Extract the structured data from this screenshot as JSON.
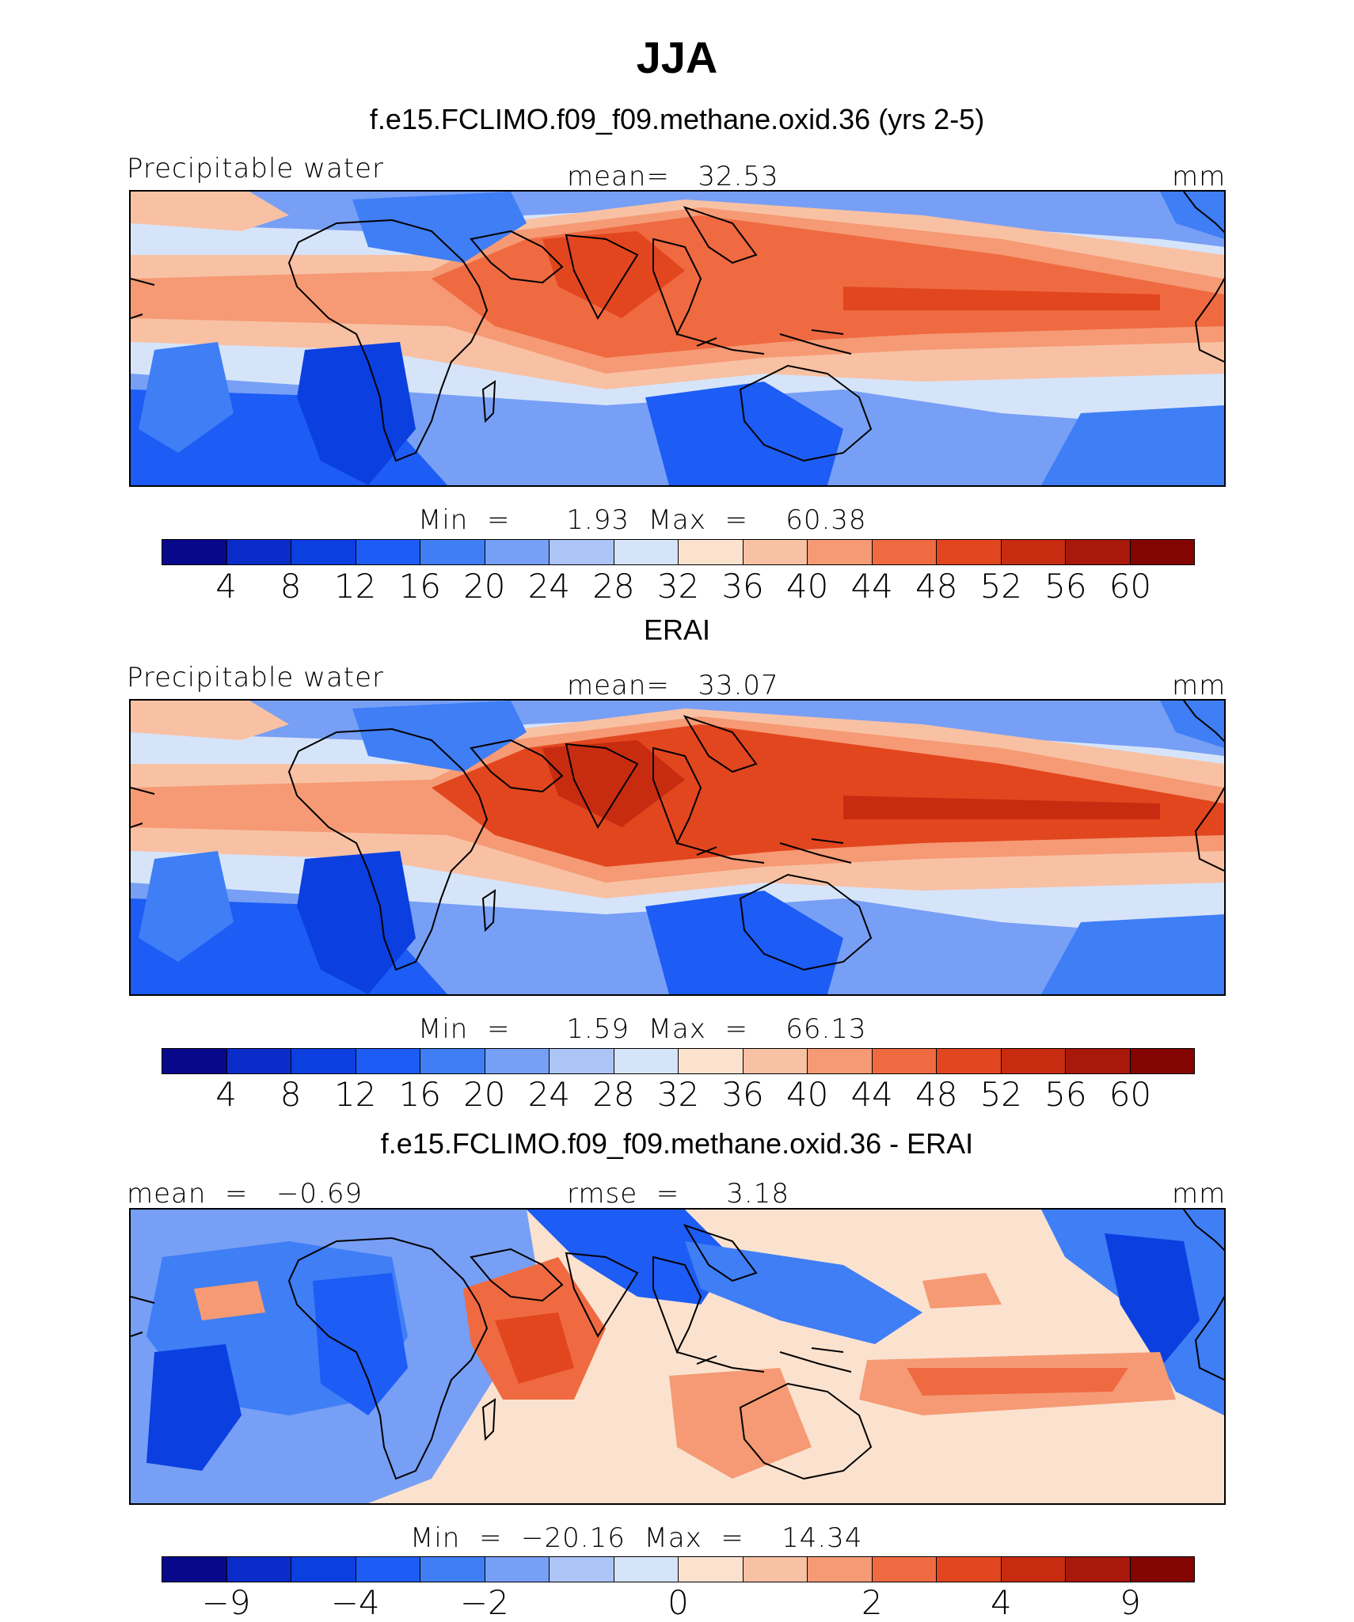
{
  "title": "JJA",
  "panels": [
    {
      "subtitle": "f.e15.FCLIMO.f09_f09.methane.oxid.36 (yrs 2-5)",
      "left_label": "Precipitable water",
      "center_label": "mean=   32.53",
      "right_label": "mm",
      "minmax": "Min  =      1.93  Max  =    60.38",
      "colorbar": {
        "colors": [
          "#08088a",
          "#0a2cc8",
          "#0b3fe0",
          "#1d5cf5",
          "#3f7ef5",
          "#779ff5",
          "#adc4f7",
          "#d6e4fa",
          "#fbe2cf",
          "#f8c1a4",
          "#f59a74",
          "#ef6a41",
          "#e2461f",
          "#c72c10",
          "#a8180b",
          "#840404"
        ],
        "ticks": [
          "4",
          "8",
          "12",
          "16",
          "20",
          "24",
          "28",
          "32",
          "36",
          "40",
          "44",
          "48",
          "52",
          "56",
          "60"
        ]
      },
      "map_field": "model precipitable water"
    },
    {
      "subtitle": "ERAI",
      "left_label": "Precipitable water",
      "center_label": "mean=   33.07",
      "right_label": "mm",
      "minmax": "Min  =      1.59  Max  =    66.13",
      "colorbar": {
        "colors": [
          "#08088a",
          "#0a2cc8",
          "#0b3fe0",
          "#1d5cf5",
          "#3f7ef5",
          "#779ff5",
          "#adc4f7",
          "#d6e4fa",
          "#fbe2cf",
          "#f8c1a4",
          "#f59a74",
          "#ef6a41",
          "#e2461f",
          "#c72c10",
          "#a8180b",
          "#840404"
        ],
        "ticks": [
          "4",
          "8",
          "12",
          "16",
          "20",
          "24",
          "28",
          "32",
          "36",
          "40",
          "44",
          "48",
          "52",
          "56",
          "60"
        ]
      },
      "map_field": "reanalysis precipitable water"
    },
    {
      "subtitle": "f.e15.FCLIMO.f09_f09.methane.oxid.36 - ERAI",
      "left_label": "mean  =   −0.69",
      "center_label": "rmse  =     3.18",
      "right_label": "mm",
      "minmax": "Min  =  −20.16  Max  =    14.34",
      "colorbar": {
        "colors": [
          "#08088a",
          "#0a2cc8",
          "#0b3fe0",
          "#1d5cf5",
          "#3f7ef5",
          "#779ff5",
          "#adc4f7",
          "#d6e4fa",
          "#fbe2cf",
          "#f8c1a4",
          "#f59a74",
          "#ef6a41",
          "#e2461f",
          "#c72c10",
          "#a8180b",
          "#840404"
        ],
        "ticks": [
          "−9",
          "−4",
          "−2",
          "0",
          "2",
          "4",
          "9"
        ]
      },
      "map_field": "difference"
    }
  ]
}
